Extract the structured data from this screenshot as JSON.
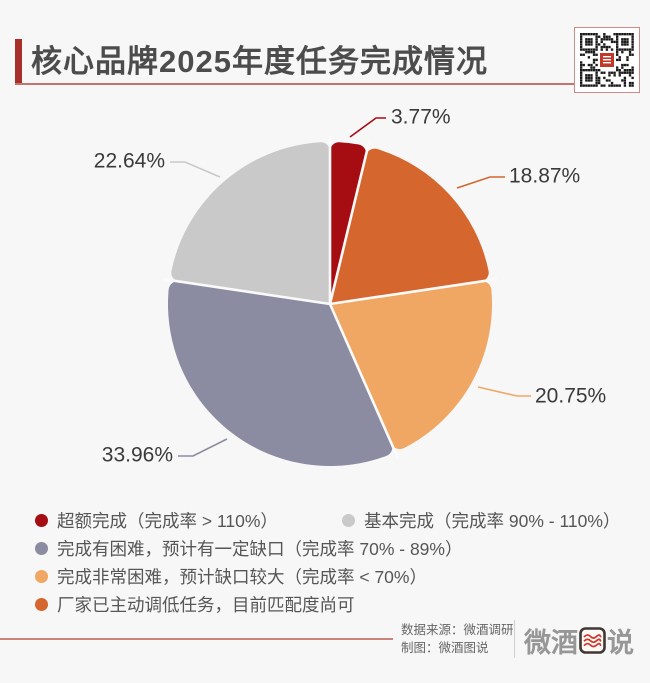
{
  "header": {
    "title": "核心品牌2025年度任务完成情况"
  },
  "colors": {
    "background": "#F7F7F7",
    "accent_red": "#A8302B",
    "title_underline": "#C4736E",
    "footer_line": "#CC837E",
    "qr_center": "#C0392B"
  },
  "chart_data": {
    "type": "pie",
    "title": "核心品牌2025年度任务完成情况",
    "start_angle_deg": 0,
    "direction": "clockwise",
    "legend_position": "bottom",
    "slices": [
      {
        "label": "超额完成（完成率 > 110%）",
        "value": 3.77,
        "display": "3.77%",
        "color": "#A60D12"
      },
      {
        "label": "厂家已主动调低任务，目前匹配度尚可",
        "value": 18.87,
        "display": "18.87%",
        "color": "#D5662E"
      },
      {
        "label": "完成非常困难，预计缺口较大（完成率 < 70%）",
        "value": 20.75,
        "display": "20.75%",
        "color": "#F0A763"
      },
      {
        "label": "完成有困难，预计有一定缺口（完成率 70% - 89%）",
        "value": 33.96,
        "display": "33.96%",
        "color": "#8B8CA1"
      },
      {
        "label": "基本完成（完成率 90% - 110%）",
        "value": 22.64,
        "display": "22.64%",
        "color": "#C9C9C9"
      }
    ]
  },
  "legend": {
    "items": [
      {
        "label": "超额完成（完成率 > 110%）",
        "color": "#A60D12"
      },
      {
        "label": "基本完成（完成率 90% - 110%）",
        "color": "#C9C9C9"
      },
      {
        "label": "完成有困难，预计有一定缺口（完成率 70% - 89%）",
        "color": "#8B8CA1"
      },
      {
        "label": "完成非常困难，预计缺口较大（完成率 < 70%）",
        "color": "#F0A763"
      },
      {
        "label": "厂家已主动调低任务，目前匹配度尚可",
        "color": "#D5662E"
      }
    ]
  },
  "footer": {
    "source": "数据来源：微酒调研",
    "credit": "制图：微酒图说",
    "logo_left": "微酒",
    "logo_right": "说"
  }
}
